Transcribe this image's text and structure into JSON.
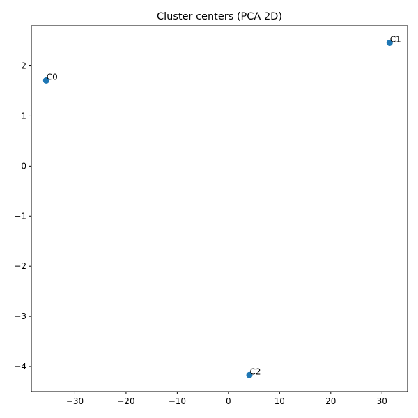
{
  "chart_data": {
    "type": "scatter",
    "title": "Cluster centers (PCA 2D)",
    "xlabel": "",
    "ylabel": "",
    "xlim": [
      -38.5,
      35
    ],
    "ylim": [
      -4.5,
      2.8
    ],
    "x_ticks": [
      -30,
      -20,
      -10,
      0,
      10,
      20,
      30
    ],
    "y_ticks": [
      -4,
      -3,
      -2,
      -1,
      0,
      1,
      2
    ],
    "x_tick_labels": [
      "−30",
      "−20",
      "−10",
      "0",
      "10",
      "20",
      "30"
    ],
    "y_tick_labels": [
      "−4",
      "−3",
      "−2",
      "−1",
      "0",
      "1",
      "2"
    ],
    "grid": false,
    "marker_color": "#1f77b4",
    "points": [
      {
        "label": "C0",
        "x": -35.6,
        "y": 1.71
      },
      {
        "label": "C1",
        "x": 31.5,
        "y": 2.46
      },
      {
        "label": "C2",
        "x": 4.1,
        "y": -4.17
      }
    ]
  }
}
